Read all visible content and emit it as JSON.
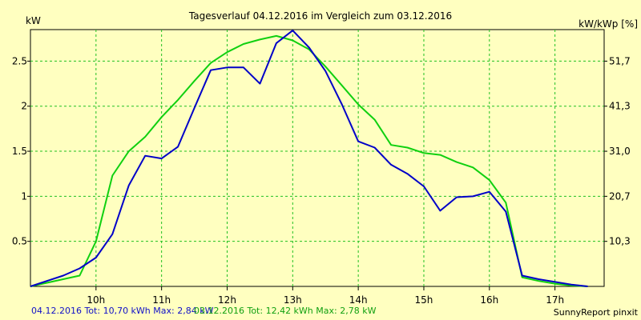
{
  "chart_data": {
    "type": "line",
    "title": "Tagesverlauf 04.12.2016 im Vergleich zum 03.12.2016",
    "ylabel_left": "kW",
    "ylabel_right": "kW/kWp [%]",
    "x_ticks": [
      "10h",
      "11h",
      "12h",
      "13h",
      "14h",
      "15h",
      "16h",
      "17h"
    ],
    "x_tick_values": [
      10,
      11,
      12,
      13,
      14,
      15,
      16,
      17
    ],
    "xlim": [
      9.0,
      17.75
    ],
    "ylim": [
      0,
      2.85
    ],
    "y_ticks_left": [
      {
        "value": 0.5,
        "label": "0.5"
      },
      {
        "value": 1,
        "label": "1"
      },
      {
        "value": 1.5,
        "label": "1.5"
      },
      {
        "value": 2,
        "label": "2"
      },
      {
        "value": 2.5,
        "label": "2.5"
      }
    ],
    "y_ticks_right": [
      {
        "value": 0.5,
        "label": "10,3"
      },
      {
        "value": 1,
        "label": "20,7"
      },
      {
        "value": 1.5,
        "label": "31,0"
      },
      {
        "value": 2,
        "label": "41,3"
      },
      {
        "value": 2.5,
        "label": "51,7"
      }
    ],
    "grid": true,
    "series": [
      {
        "name": "04.12.2016",
        "color": "#0000c8",
        "points": [
          [
            9.0,
            0.0
          ],
          [
            9.25,
            0.06
          ],
          [
            9.5,
            0.12
          ],
          [
            9.75,
            0.2
          ],
          [
            10.0,
            0.32
          ],
          [
            10.25,
            0.58
          ],
          [
            10.5,
            1.12
          ],
          [
            10.75,
            1.45
          ],
          [
            11.0,
            1.42
          ],
          [
            11.25,
            1.55
          ],
          [
            11.5,
            1.98
          ],
          [
            11.75,
            2.4
          ],
          [
            12.0,
            2.43
          ],
          [
            12.25,
            2.43
          ],
          [
            12.5,
            2.25
          ],
          [
            12.75,
            2.7
          ],
          [
            13.0,
            2.84
          ],
          [
            13.25,
            2.65
          ],
          [
            13.5,
            2.39
          ],
          [
            13.75,
            2.02
          ],
          [
            14.0,
            1.61
          ],
          [
            14.25,
            1.54
          ],
          [
            14.5,
            1.35
          ],
          [
            14.75,
            1.25
          ],
          [
            15.0,
            1.11
          ],
          [
            15.25,
            0.84
          ],
          [
            15.5,
            0.99
          ],
          [
            15.75,
            1.0
          ],
          [
            16.0,
            1.05
          ],
          [
            16.25,
            0.83
          ],
          [
            16.5,
            0.12
          ],
          [
            16.75,
            0.08
          ],
          [
            17.0,
            0.05
          ],
          [
            17.25,
            0.02
          ],
          [
            17.5,
            0.0
          ]
        ]
      },
      {
        "name": "03.12.2016",
        "color": "#10d010",
        "points": [
          [
            9.0,
            0.0
          ],
          [
            9.25,
            0.04
          ],
          [
            9.5,
            0.08
          ],
          [
            9.75,
            0.12
          ],
          [
            10.0,
            0.5
          ],
          [
            10.25,
            1.23
          ],
          [
            10.5,
            1.5
          ],
          [
            10.75,
            1.66
          ],
          [
            11.0,
            1.88
          ],
          [
            11.25,
            2.07
          ],
          [
            11.5,
            2.28
          ],
          [
            11.75,
            2.48
          ],
          [
            12.0,
            2.6
          ],
          [
            12.25,
            2.69
          ],
          [
            12.5,
            2.74
          ],
          [
            12.75,
            2.78
          ],
          [
            13.0,
            2.73
          ],
          [
            13.25,
            2.63
          ],
          [
            13.5,
            2.44
          ],
          [
            13.75,
            2.23
          ],
          [
            14.0,
            2.02
          ],
          [
            14.25,
            1.85
          ],
          [
            14.5,
            1.57
          ],
          [
            14.75,
            1.54
          ],
          [
            15.0,
            1.48
          ],
          [
            15.25,
            1.46
          ],
          [
            15.5,
            1.38
          ],
          [
            15.75,
            1.32
          ],
          [
            16.0,
            1.18
          ],
          [
            16.25,
            0.93
          ],
          [
            16.5,
            0.1
          ],
          [
            16.75,
            0.06
          ],
          [
            17.0,
            0.03
          ],
          [
            17.25,
            0.01
          ],
          [
            17.5,
            0.0
          ]
        ]
      }
    ]
  },
  "footer": {
    "series1_text": "04.12.2016 Tot: 10,70 kWh Max: 2,84 kW",
    "series2_text": "03.12.2016 Tot: 12,42 kWh Max: 2,78 kW",
    "brand": "SunnyReport pinxit"
  }
}
